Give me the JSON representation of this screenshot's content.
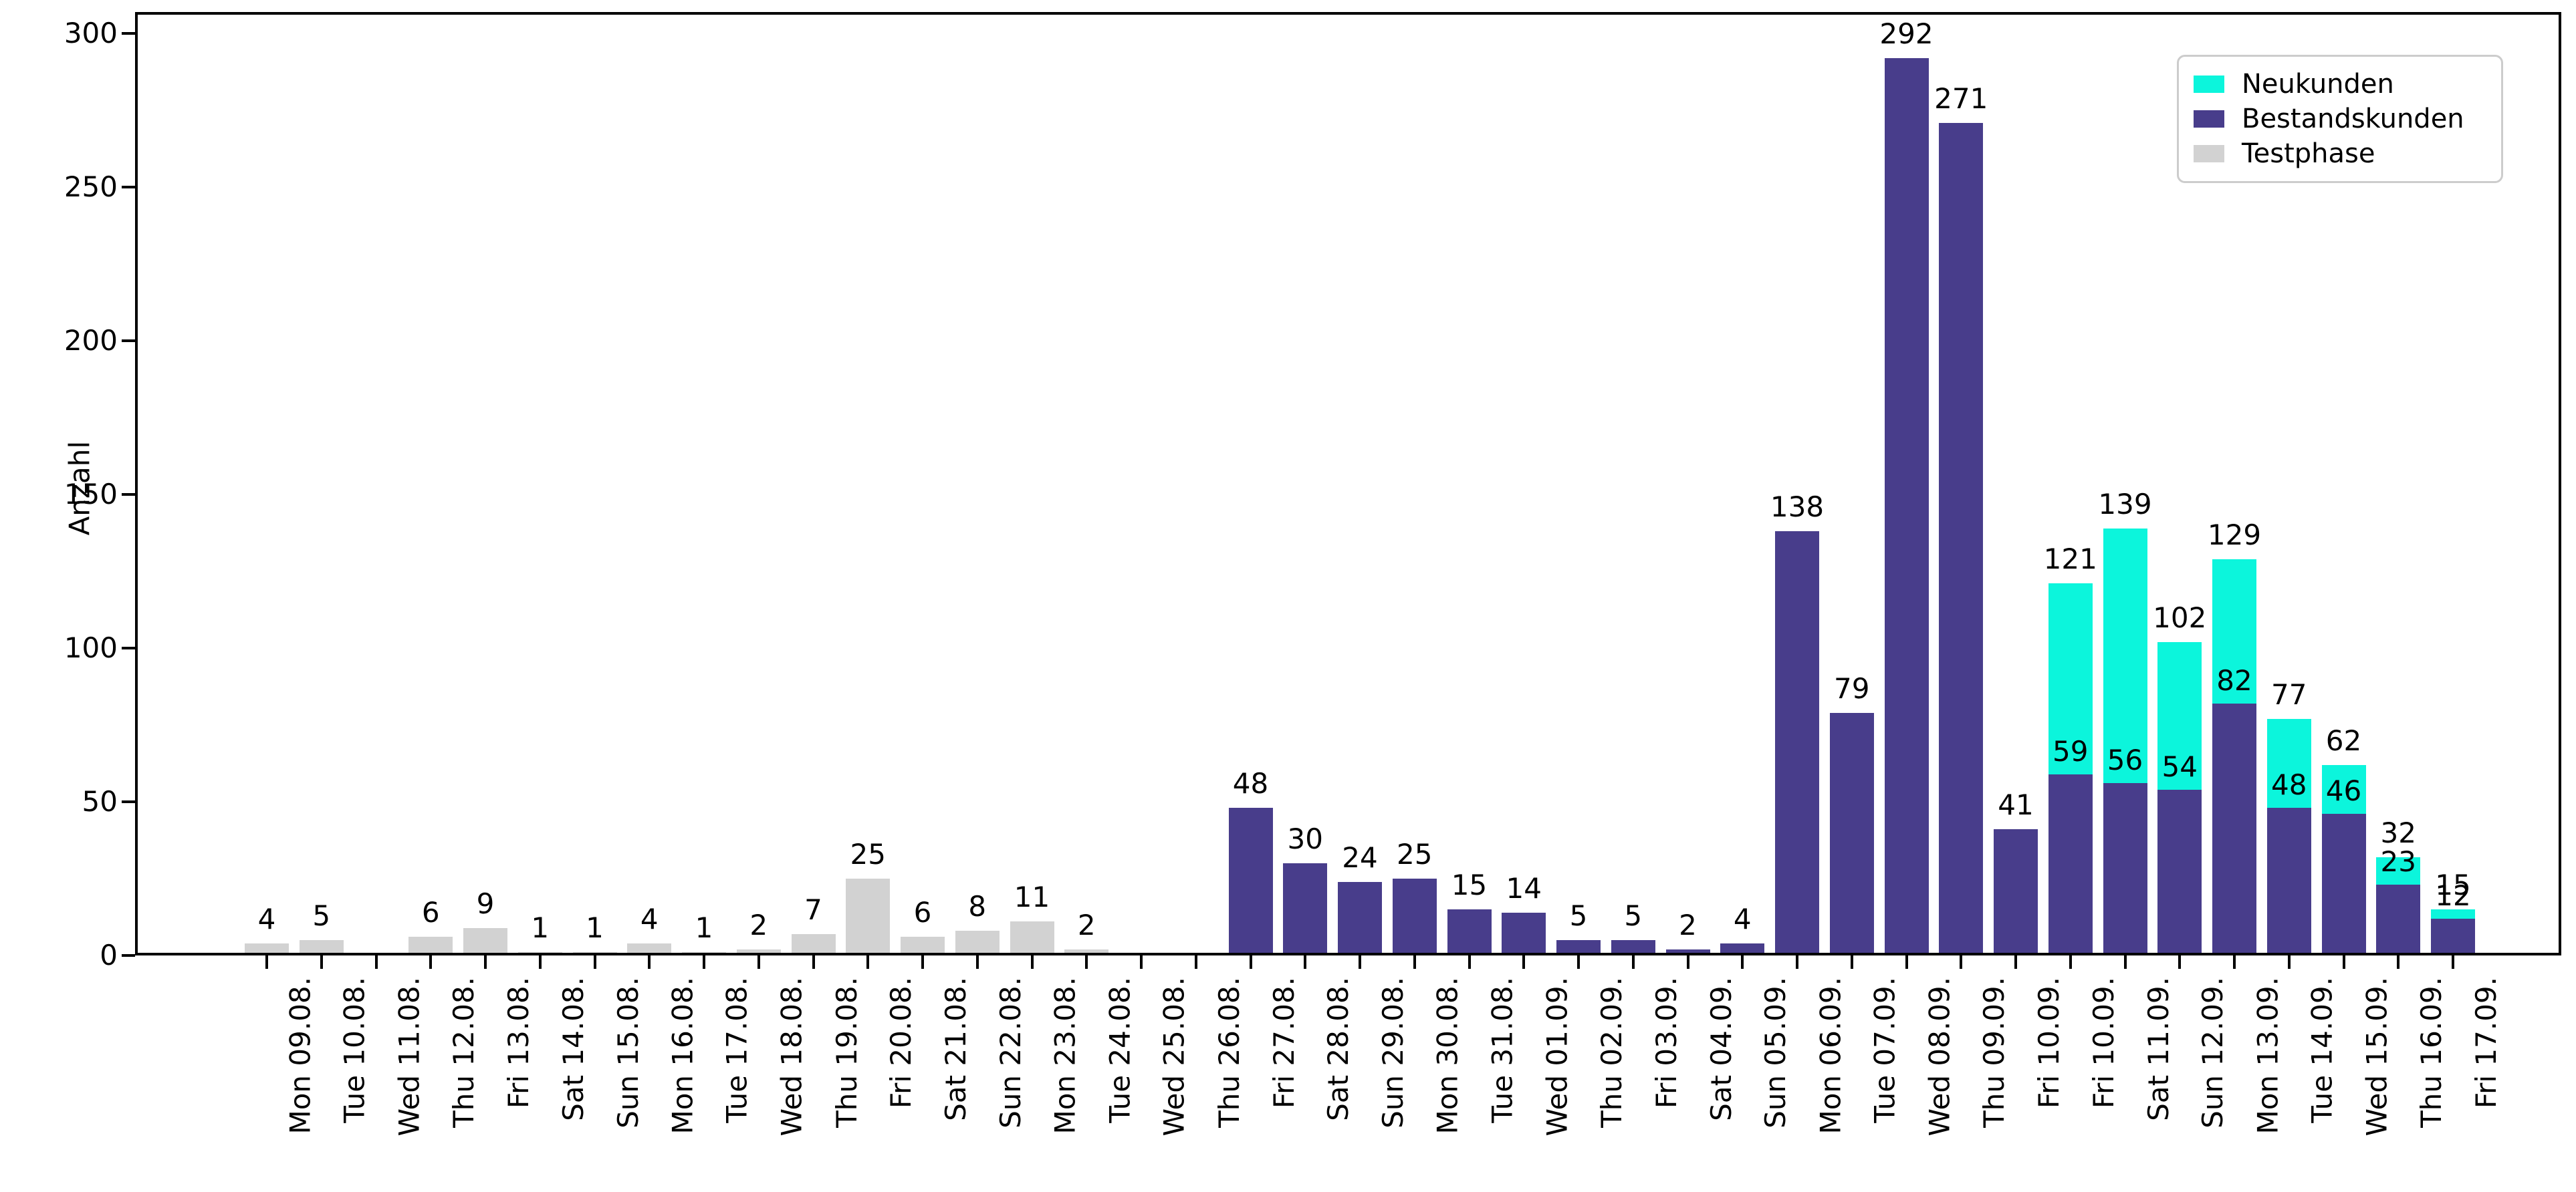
{
  "chart_data": {
    "type": "bar",
    "stacked": true,
    "title": "",
    "xlabel": "",
    "ylabel": "Anzahl",
    "ylim": [
      0,
      307
    ],
    "yticks": [
      0,
      50,
      100,
      150,
      200,
      250,
      300
    ],
    "grid": false,
    "legend_position": "upper right",
    "categories": [
      "Mon 09.08.",
      "Tue 10.08.",
      "Wed 11.08.",
      "Thu 12.08.",
      "Fri 13.08.",
      "Sat 14.08.",
      "Sun 15.08.",
      "Mon 16.08.",
      "Tue 17.08.",
      "Wed 18.08.",
      "Thu 19.08.",
      "Fri 20.08.",
      "Sat 21.08.",
      "Sun 22.08.",
      "Mon 23.08.",
      "Tue 24.08.",
      "Wed 25.08.",
      "Thu 26.08.",
      "Fri 27.08.",
      "Sat 28.08.",
      "Sun 29.08.",
      "Mon 30.08.",
      "Tue 31.08.",
      "Wed 01.09.",
      "Thu 02.09.",
      "Fri 03.09.",
      "Sat 04.09.",
      "Sun 05.09.",
      "Mon 06.09.",
      "Tue 07.09.",
      "Wed 08.09.",
      "Thu 09.09.",
      "Fri 10.09.",
      "Fri 10.09.",
      "Sat 11.09.",
      "Sun 12.09.",
      "Mon 13.09.",
      "Tue 14.09.",
      "Wed 15.09.",
      "Thu 16.09.",
      "Fri 17.09."
    ],
    "stack_order_bottom_to_top": [
      "Testphase",
      "Bestandskunden",
      "Neukunden"
    ],
    "series": [
      {
        "name": "Neukunden",
        "color": "#0cf5dc",
        "values": [
          0,
          0,
          0,
          0,
          0,
          0,
          0,
          0,
          0,
          0,
          0,
          0,
          0,
          0,
          0,
          0,
          0,
          0,
          0,
          0,
          0,
          0,
          0,
          0,
          0,
          0,
          0,
          0,
          0,
          0,
          0,
          0,
          0,
          62,
          83,
          48,
          47,
          29,
          16,
          9,
          3
        ]
      },
      {
        "name": "Bestandskunden",
        "color": "#483d8b",
        "values": [
          0,
          0,
          0,
          0,
          0,
          0,
          0,
          0,
          0,
          0,
          0,
          0,
          0,
          0,
          0,
          0,
          0,
          0,
          48,
          30,
          24,
          25,
          15,
          14,
          5,
          5,
          2,
          4,
          138,
          79,
          292,
          271,
          41,
          59,
          56,
          54,
          82,
          48,
          46,
          23,
          12
        ]
      },
      {
        "name": "Testphase",
        "color": "#d2d2d2",
        "values": [
          4,
          5,
          0,
          6,
          9,
          1,
          1,
          4,
          1,
          2,
          7,
          25,
          6,
          8,
          11,
          2,
          0,
          0,
          0,
          0,
          0,
          0,
          0,
          0,
          0,
          0,
          0,
          0,
          0,
          0,
          0,
          0,
          0,
          0,
          0,
          0,
          0,
          0,
          0,
          0,
          0
        ]
      }
    ],
    "bar_total_labels": [
      "4",
      "5",
      "",
      "6",
      "9",
      "1",
      "1",
      "4",
      "1",
      "2",
      "7",
      "25",
      "6",
      "8",
      "11",
      "2",
      "",
      "",
      "48",
      "30",
      "24",
      "25",
      "15",
      "14",
      "5",
      "5",
      "2",
      "4",
      "138",
      "79",
      "292",
      "271",
      "41",
      "121",
      "139",
      "102",
      "129",
      "77",
      "62",
      "32",
      "15"
    ],
    "bar_inner_labels": [
      "",
      "",
      "",
      "",
      "",
      "",
      "",
      "",
      "",
      "",
      "",
      "",
      "",
      "",
      "",
      "",
      "",
      "",
      "",
      "",
      "",
      "",
      "",
      "",
      "",
      "",
      "",
      "",
      "",
      "",
      "",
      "",
      "",
      "59",
      "56",
      "54",
      "82",
      "48",
      "46",
      "23",
      "12"
    ],
    "legend": [
      {
        "label": "Neukunden",
        "color": "#0cf5dc"
      },
      {
        "label": "Bestandskunden",
        "color": "#483d8b"
      },
      {
        "label": "Testphase",
        "color": "#d2d2d2"
      }
    ]
  }
}
